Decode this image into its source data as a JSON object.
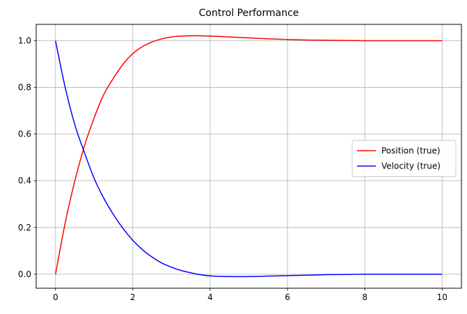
{
  "chart_data": {
    "type": "line",
    "title": "Control Performance",
    "xlabel": "",
    "ylabel": "",
    "xlim": [
      -0.5,
      10.5
    ],
    "ylim": [
      -0.06,
      1.07
    ],
    "x_ticks": [
      0,
      2,
      4,
      6,
      8,
      10
    ],
    "y_ticks": [
      0.0,
      0.2,
      0.4,
      0.6,
      0.8,
      1.0
    ],
    "x_tick_labels": [
      "0",
      "2",
      "4",
      "6",
      "8",
      "10"
    ],
    "y_tick_labels": [
      "0.0",
      "0.2",
      "0.4",
      "0.6",
      "0.8",
      "1.0"
    ],
    "grid": true,
    "legend_position": "center-right",
    "series": [
      {
        "name": "Position (true)",
        "color": "#ff0000",
        "x": [
          0,
          0.25,
          0.5,
          0.75,
          1.0,
          1.25,
          1.5,
          1.75,
          2.0,
          2.25,
          2.5,
          2.75,
          3.0,
          3.25,
          3.5,
          3.75,
          4.0,
          4.5,
          5.0,
          5.5,
          6.0,
          6.5,
          7.0,
          7.5,
          8.0,
          8.5,
          9.0,
          9.5,
          10.0
        ],
        "values": [
          0.0,
          0.22,
          0.4,
          0.55,
          0.67,
          0.77,
          0.84,
          0.9,
          0.945,
          0.975,
          0.995,
          1.008,
          1.016,
          1.02,
          1.021,
          1.021,
          1.02,
          1.016,
          1.012,
          1.008,
          1.005,
          1.003,
          1.002,
          1.001,
          1.0,
          1.0,
          1.0,
          1.0,
          1.0
        ]
      },
      {
        "name": "Velocity (true)",
        "color": "#0000ff",
        "x": [
          0,
          0.25,
          0.5,
          0.75,
          1.0,
          1.25,
          1.5,
          1.75,
          2.0,
          2.25,
          2.5,
          2.75,
          3.0,
          3.25,
          3.5,
          3.75,
          4.0,
          4.5,
          5.0,
          5.5,
          6.0,
          6.5,
          7.0,
          7.5,
          8.0,
          8.5,
          9.0,
          9.5,
          10.0
        ],
        "values": [
          1.0,
          0.8,
          0.64,
          0.52,
          0.41,
          0.325,
          0.255,
          0.195,
          0.145,
          0.105,
          0.073,
          0.048,
          0.03,
          0.016,
          0.006,
          -0.002,
          -0.007,
          -0.01,
          -0.01,
          -0.008,
          -0.006,
          -0.004,
          -0.002,
          -0.001,
          0.0,
          0.0,
          0.0,
          0.0,
          0.0
        ]
      }
    ]
  }
}
